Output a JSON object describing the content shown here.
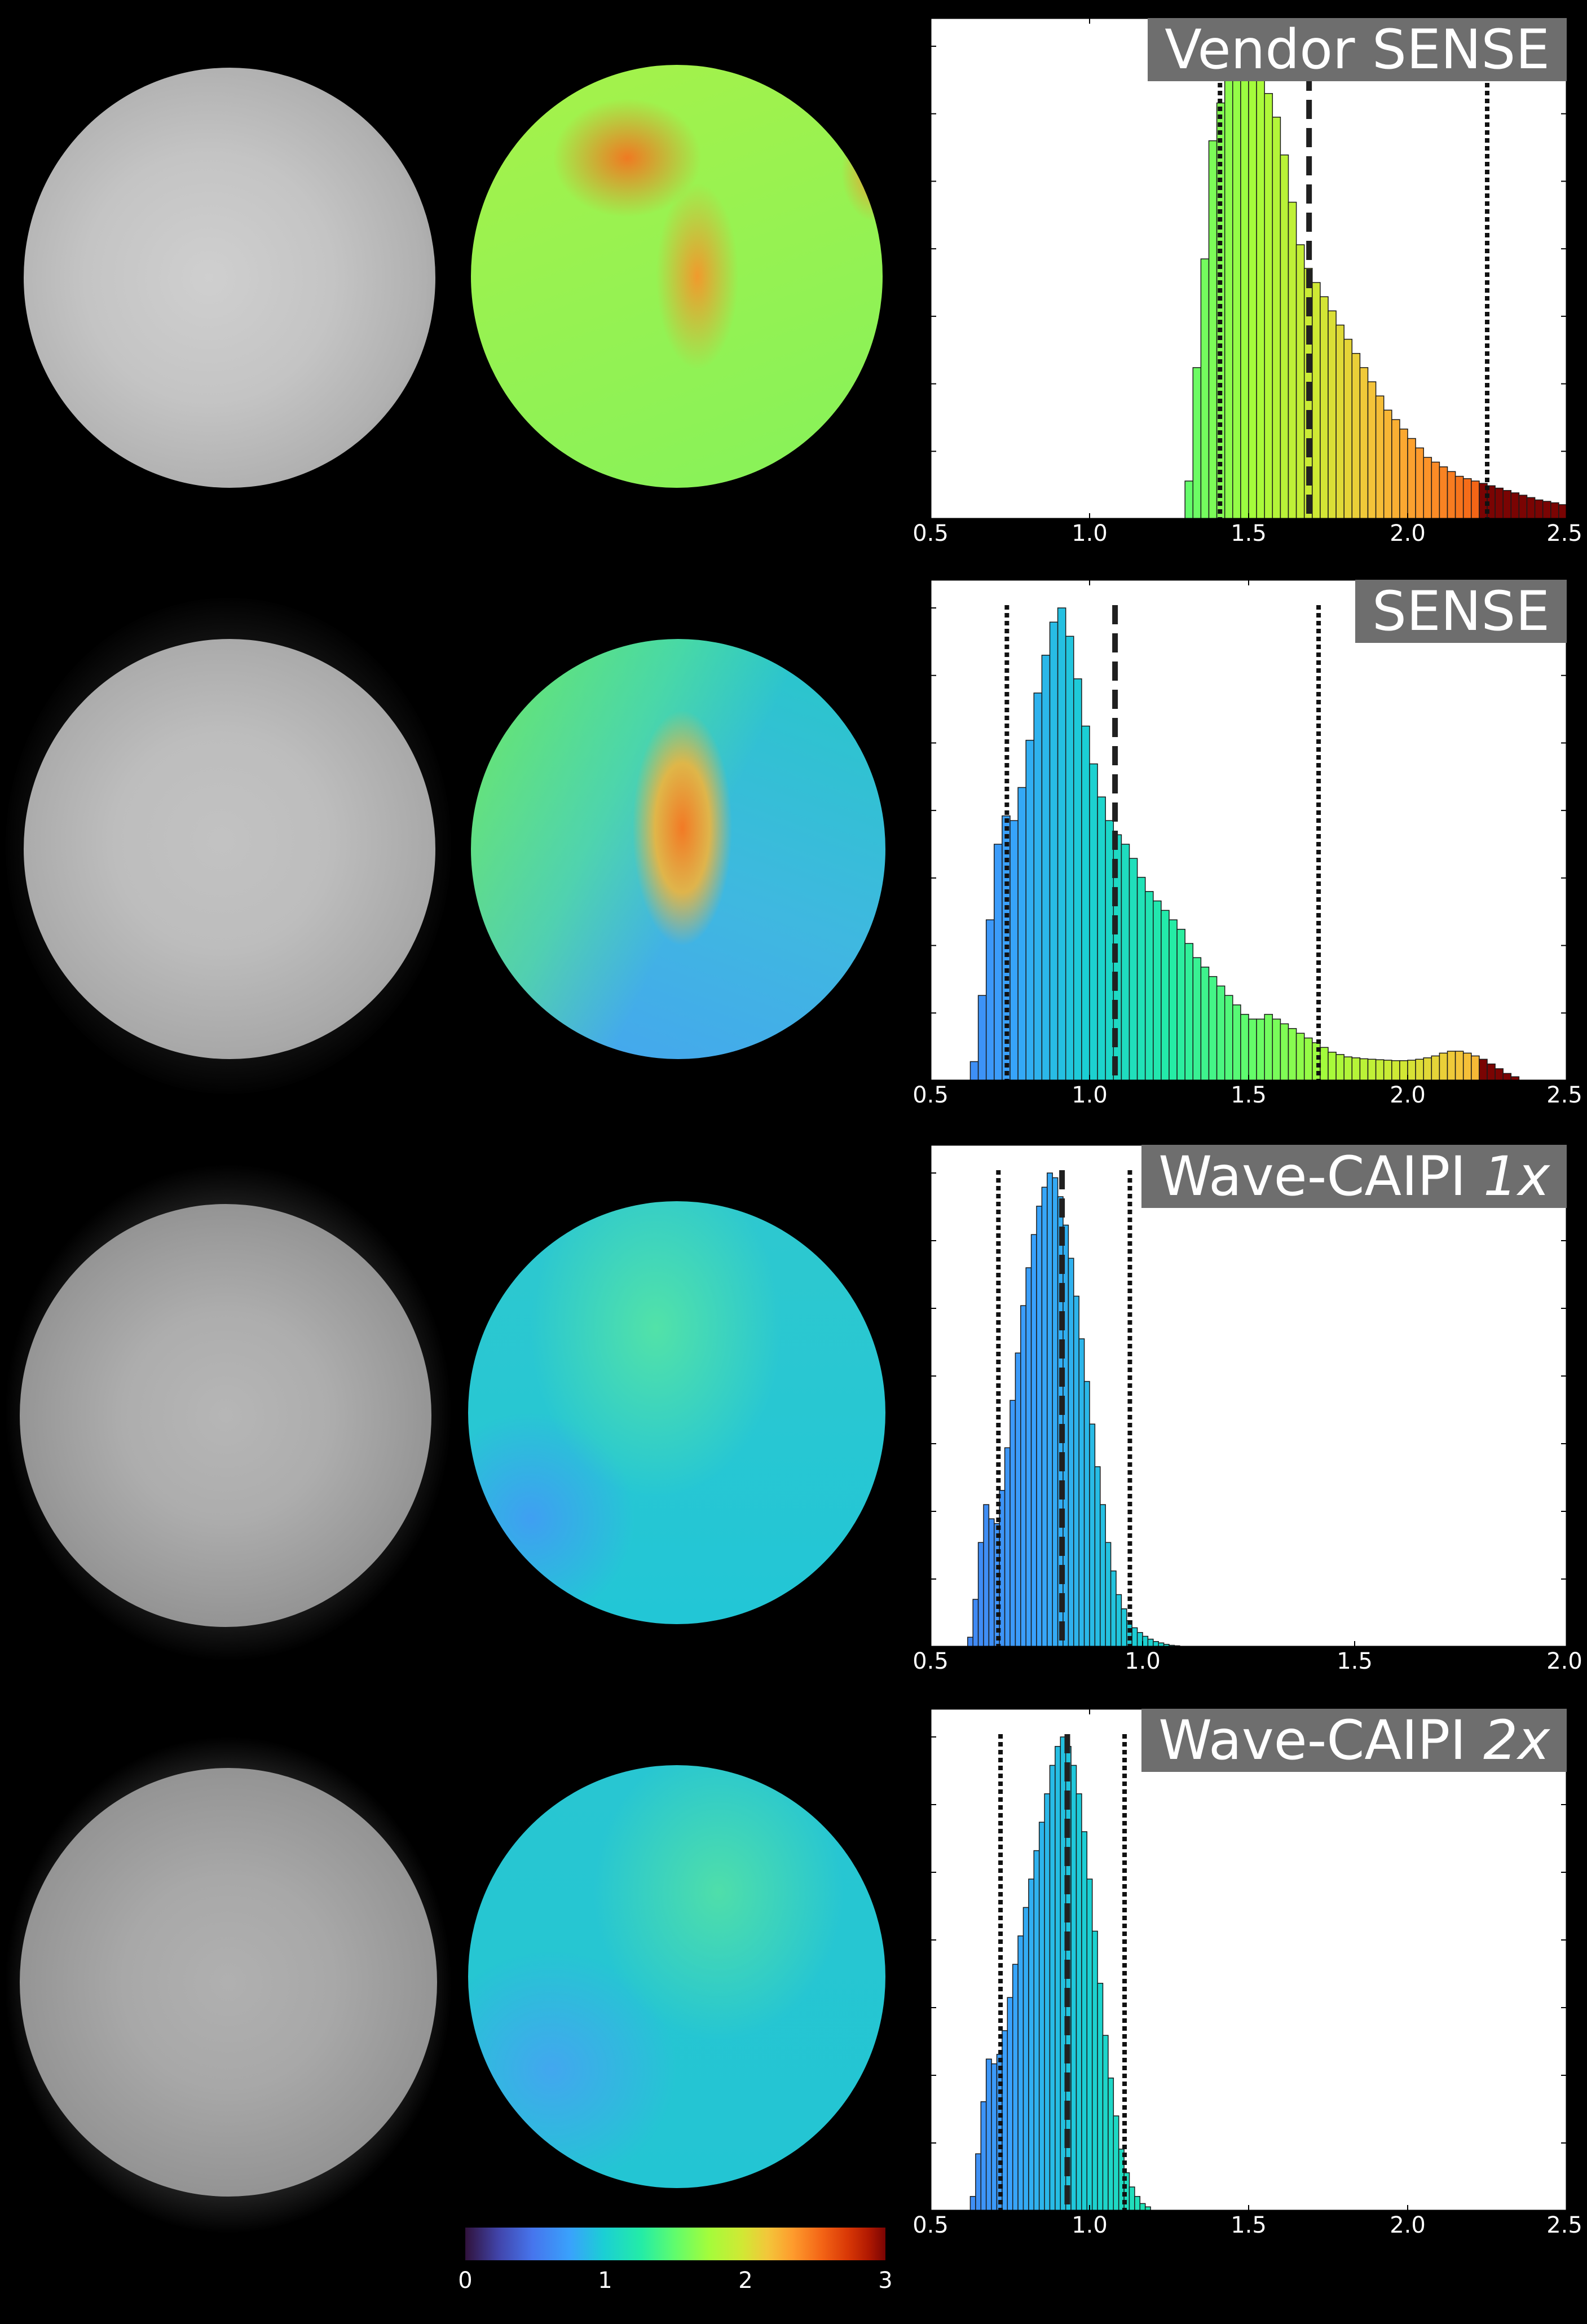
{
  "rows": [
    {
      "label_main": "Vendor SENSE",
      "label_italic": "",
      "map_colors": [
        "#ef7a22",
        "#f09a2d",
        "#a6f24a",
        "#86f25a"
      ],
      "chart_data": {
        "type": "bar",
        "title": "Vendor SENSE",
        "xlim": [
          0.5,
          2.5
        ],
        "xticks": [
          "0.5",
          "1.0",
          "1.5",
          "2.0",
          "2.5"
        ],
        "bin_width": 0.025,
        "x": [
          1.3125,
          1.3375,
          1.3625,
          1.3875,
          1.4125,
          1.4375,
          1.4625,
          1.4875,
          1.5125,
          1.5375,
          1.5625,
          1.5875,
          1.6125,
          1.6375,
          1.6625,
          1.6875,
          1.7125,
          1.7375,
          1.7625,
          1.7875,
          1.8125,
          1.8375,
          1.8625,
          1.8875,
          1.9125,
          1.9375,
          1.9625,
          1.9875,
          2.0125,
          2.0375,
          2.0625,
          2.0875,
          2.1125,
          2.1375,
          2.1625,
          2.1875,
          2.2125,
          2.2375,
          2.2625,
          2.2875,
          2.3125,
          2.3375,
          2.3625,
          2.3875,
          2.4125,
          2.4375,
          2.4625,
          2.4875
        ],
        "values": [
          0.08,
          0.32,
          0.55,
          0.8,
          0.88,
          0.95,
          0.99,
          1.0,
          0.98,
          0.95,
          0.9,
          0.85,
          0.77,
          0.67,
          0.58,
          0.53,
          0.5,
          0.47,
          0.44,
          0.41,
          0.38,
          0.35,
          0.32,
          0.29,
          0.26,
          0.23,
          0.21,
          0.19,
          0.17,
          0.15,
          0.13,
          0.12,
          0.11,
          0.1,
          0.09,
          0.085,
          0.08,
          0.075,
          0.07,
          0.065,
          0.06,
          0.055,
          0.05,
          0.045,
          0.04,
          0.037,
          0.034,
          0.03
        ],
        "mean": 1.69,
        "dotted": [
          1.41,
          2.25
        ]
      }
    },
    {
      "label_main": "SENSE",
      "label_italic": "",
      "map_colors": [
        "#f27a25",
        "#3fb8e0",
        "#46a4f0",
        "#26c8c8"
      ],
      "chart_data": {
        "type": "bar",
        "title": "SENSE",
        "xlim": [
          0.5,
          2.5
        ],
        "xticks": [
          "0.5",
          "1.0",
          "1.5",
          "2.0",
          "2.5"
        ],
        "bin_width": 0.025,
        "x": [
          0.6375,
          0.6625,
          0.6875,
          0.7125,
          0.7375,
          0.7625,
          0.7875,
          0.8125,
          0.8375,
          0.8625,
          0.8875,
          0.9125,
          0.9375,
          0.9625,
          0.9875,
          1.0125,
          1.0375,
          1.0625,
          1.0875,
          1.1125,
          1.1375,
          1.1625,
          1.1875,
          1.2125,
          1.2375,
          1.2625,
          1.2875,
          1.3125,
          1.3375,
          1.3625,
          1.3875,
          1.4125,
          1.4375,
          1.4625,
          1.4875,
          1.5125,
          1.5375,
          1.5625,
          1.5875,
          1.6125,
          1.6375,
          1.6625,
          1.6875,
          1.7125,
          1.7375,
          1.7625,
          1.7875,
          1.8125,
          1.8375,
          1.8625,
          1.8875,
          1.9125,
          1.9375,
          1.9625,
          1.9875,
          2.0125,
          2.0375,
          2.0625,
          2.0875,
          2.1125,
          2.1375,
          2.1625,
          2.1875,
          2.2125,
          2.2375,
          2.2625,
          2.2875,
          2.3125,
          2.3375
        ],
        "values": [
          0.04,
          0.18,
          0.34,
          0.5,
          0.56,
          0.55,
          0.62,
          0.72,
          0.82,
          0.9,
          0.97,
          1.0,
          0.94,
          0.85,
          0.75,
          0.67,
          0.6,
          0.55,
          0.52,
          0.5,
          0.47,
          0.43,
          0.4,
          0.38,
          0.36,
          0.34,
          0.32,
          0.29,
          0.26,
          0.24,
          0.22,
          0.2,
          0.18,
          0.16,
          0.14,
          0.13,
          0.13,
          0.14,
          0.13,
          0.12,
          0.11,
          0.1,
          0.09,
          0.08,
          0.07,
          0.06,
          0.055,
          0.05,
          0.048,
          0.046,
          0.045,
          0.044,
          0.043,
          0.042,
          0.042,
          0.043,
          0.045,
          0.048,
          0.052,
          0.058,
          0.062,
          0.062,
          0.058,
          0.052,
          0.045,
          0.035,
          0.025,
          0.015,
          0.008
        ],
        "mean": 1.08,
        "dotted": [
          0.74,
          1.72
        ]
      }
    },
    {
      "label_main": "Wave-CAIPI ",
      "label_italic": "1x",
      "map_colors": [
        "#2ec8cf",
        "#52e2a8",
        "#3f9ff2",
        "#22c6d6"
      ],
      "chart_data": {
        "type": "bar",
        "title": "Wave-CAIPI 1x",
        "xlim": [
          0.5,
          2.0
        ],
        "xticks": [
          "0.5",
          "1.0",
          "1.5",
          "2.0"
        ],
        "bin_width": 0.0125,
        "x": [
          0.59375,
          0.60625,
          0.61875,
          0.63125,
          0.64375,
          0.65625,
          0.66875,
          0.68125,
          0.69375,
          0.70625,
          0.71875,
          0.73125,
          0.74375,
          0.75625,
          0.76875,
          0.78125,
          0.79375,
          0.80625,
          0.81875,
          0.83125,
          0.84375,
          0.85625,
          0.86875,
          0.88125,
          0.89375,
          0.90625,
          0.91875,
          0.93125,
          0.94375,
          0.95625,
          0.96875,
          0.98125,
          0.99375,
          1.00625,
          1.01875,
          1.03125,
          1.04375,
          1.05625,
          1.06875,
          1.08125
        ],
        "values": [
          0.02,
          0.1,
          0.22,
          0.3,
          0.27,
          0.26,
          0.33,
          0.42,
          0.52,
          0.62,
          0.72,
          0.8,
          0.87,
          0.93,
          0.97,
          1.0,
          0.99,
          0.95,
          0.89,
          0.82,
          0.74,
          0.65,
          0.56,
          0.47,
          0.38,
          0.3,
          0.22,
          0.16,
          0.11,
          0.08,
          0.055,
          0.04,
          0.03,
          0.022,
          0.016,
          0.011,
          0.008,
          0.005,
          0.003,
          0.002
        ],
        "mean": 0.81,
        "dotted": [
          0.66,
          0.97
        ]
      }
    },
    {
      "label_main": "Wave-CAIPI ",
      "label_italic": "2x",
      "map_colors": [
        "#28c6d2",
        "#4fdeaa",
        "#42a7ef",
        "#23c5d3"
      ],
      "chart_data": {
        "type": "bar",
        "title": "Wave-CAIPI 2x",
        "xlim": [
          0.5,
          2.5
        ],
        "xticks": [
          "0.5",
          "1.0",
          "1.5",
          "2.0",
          "2.5"
        ],
        "bin_width": 0.0167,
        "x": [
          0.6333,
          0.65,
          0.6667,
          0.6833,
          0.7,
          0.7167,
          0.7333,
          0.75,
          0.7667,
          0.7833,
          0.8,
          0.8167,
          0.8333,
          0.85,
          0.8667,
          0.8833,
          0.9,
          0.9167,
          0.9333,
          0.95,
          0.9667,
          0.9833,
          1.0,
          1.0167,
          1.0333,
          1.05,
          1.0667,
          1.0833,
          1.1,
          1.1167,
          1.1333,
          1.15,
          1.1667,
          1.1833
        ],
        "values": [
          0.03,
          0.12,
          0.23,
          0.32,
          0.31,
          0.33,
          0.38,
          0.45,
          0.52,
          0.58,
          0.64,
          0.7,
          0.76,
          0.82,
          0.88,
          0.94,
          0.98,
          1.0,
          0.98,
          0.94,
          0.88,
          0.8,
          0.7,
          0.59,
          0.48,
          0.37,
          0.28,
          0.2,
          0.13,
          0.08,
          0.05,
          0.03,
          0.015,
          0.008
        ],
        "mean": 0.93,
        "dotted": [
          0.72,
          1.11
        ]
      }
    }
  ],
  "colorbar": {
    "ticks": [
      "0",
      "1",
      "2",
      "3"
    ]
  },
  "colors": {
    "mean_line": "#202020",
    "dotted_line": "#111111",
    "bar_edge": "#1a1a1a"
  }
}
